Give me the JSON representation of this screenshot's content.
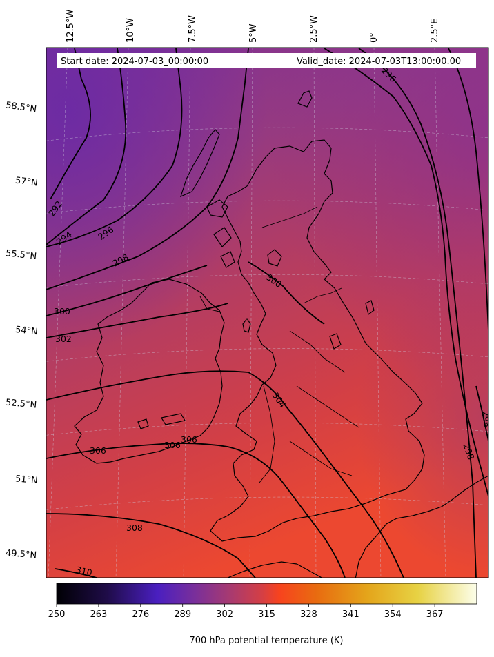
{
  "header": {
    "start_date": "Start date: 2024-07-03_00:00:00",
    "valid_date": "Valid_date: 2024-07-03T13:00:00.00"
  },
  "map": {
    "longitude_labels": [
      "12.5°W",
      "10°W",
      "7.5°W",
      "5°W",
      "2.5°W",
      "0°",
      "2.5°E"
    ],
    "latitude_labels": [
      "58.5°N",
      "57°N",
      "55.5°N",
      "54°N",
      "52.5°N",
      "51°N",
      "49.5°N"
    ],
    "contour_levels": [
      "292",
      "294",
      "296",
      "298",
      "300",
      "302",
      "304",
      "306",
      "308",
      "310"
    ],
    "contour_label_texts": {
      "c292": "292",
      "c294": "294",
      "c296w": "296",
      "c296ne": "296",
      "c296e": "296",
      "c298w": "298",
      "c298e": "298",
      "c300w": "300",
      "c300c": "300",
      "c302": "302",
      "c304": "304",
      "c306a": "306",
      "c306b": "306",
      "c306c": "306",
      "c308": "308",
      "c310": "310"
    }
  },
  "colorbar": {
    "colormap": "inferno-like (black-purple-red-orange-yellow-white)",
    "ticks": [
      250,
      263,
      276,
      289,
      302,
      315,
      328,
      341,
      354,
      367
    ],
    "tick_labels": [
      "250",
      "263",
      "276",
      "289",
      "302",
      "315",
      "328",
      "341",
      "354",
      "367"
    ],
    "range": [
      250,
      380
    ],
    "label": "700 hPa potential temperature (K)"
  },
  "colors": {
    "cold_purple": "#7a2e97",
    "mid_magenta": "#a63a73",
    "warm_red": "#d23e45",
    "hot_orange_red": "#ee4a2c"
  }
}
